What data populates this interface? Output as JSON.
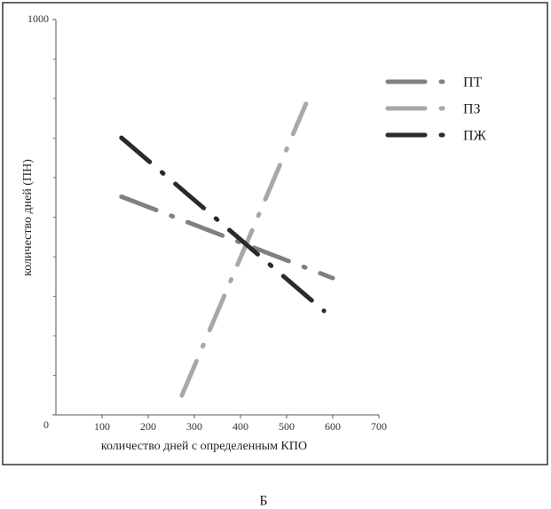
{
  "chart_data": {
    "type": "line",
    "xlabel": "количество дней с определенным КПО",
    "ylabel": "количество дней (ПН)",
    "caption": "Б",
    "xlim": [
      0,
      700
    ],
    "ylim": [
      0,
      1000
    ],
    "xticks": [
      100,
      200,
      300,
      400,
      500,
      600,
      700
    ],
    "yticks": [
      0,
      1000
    ],
    "yminor_ticks": [
      100,
      200,
      300,
      400,
      500,
      600,
      700,
      800,
      900
    ],
    "legend": "upper right",
    "series": [
      {
        "name": "ПТ",
        "color": "#808080",
        "x": [
          142,
          600
        ],
        "values": [
          552,
          346
        ]
      },
      {
        "name": "ПЗ",
        "color": "#a8a8a8",
        "x": [
          273,
          542
        ],
        "values": [
          49,
          787
        ]
      },
      {
        "name": "ПЖ",
        "color": "#2a2a2a",
        "x": [
          142,
          581
        ],
        "values": [
          701,
          263
        ]
      }
    ]
  }
}
